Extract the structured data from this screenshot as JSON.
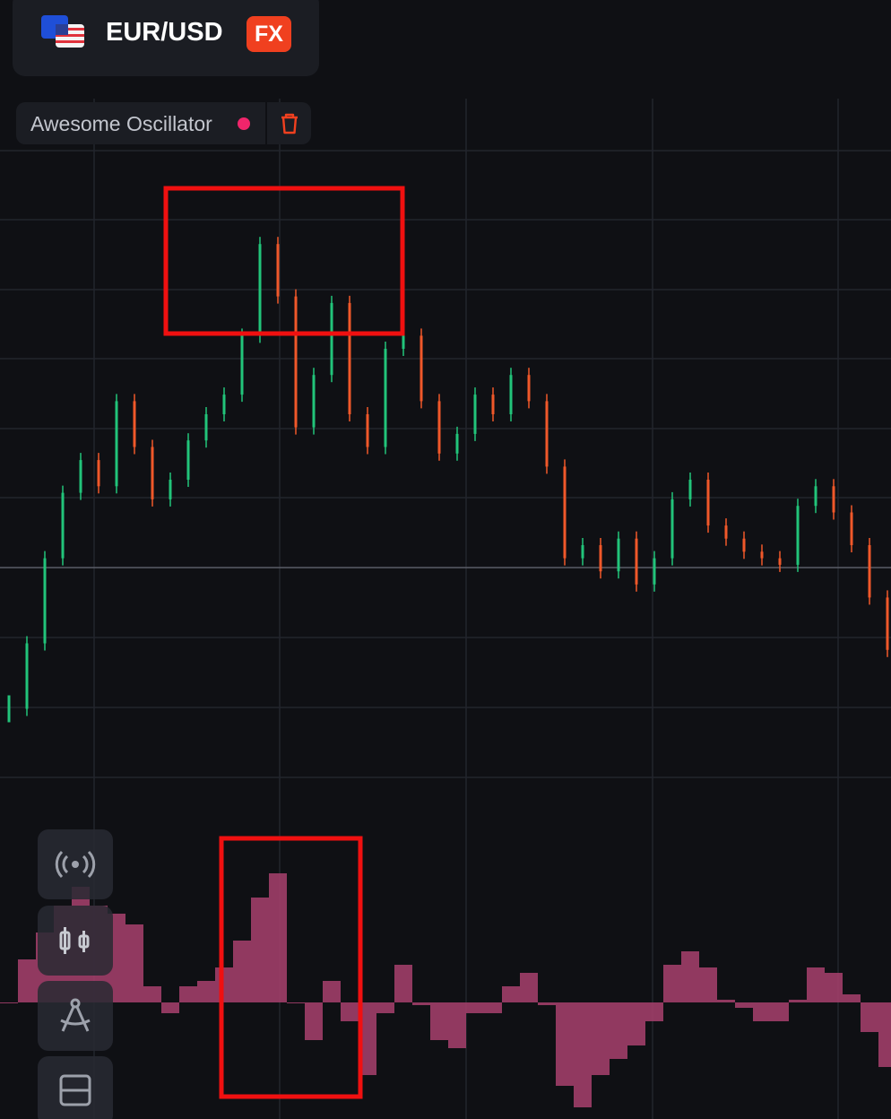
{
  "header": {
    "symbol": "EUR/USD",
    "market_badge": "FX"
  },
  "indicator": {
    "name": "Awesome Oscillator"
  },
  "chart_data": {
    "price": {
      "type": "candlestick",
      "ylim": [
        0,
        100
      ],
      "up_color": "#22c47a",
      "down_color": "#f0582a",
      "values": [
        15,
        25,
        38,
        48,
        53,
        49,
        62,
        55,
        47,
        50,
        56,
        60,
        63,
        72,
        86,
        78,
        58,
        66,
        77,
        60,
        55,
        70,
        72,
        62,
        54,
        57,
        63,
        60,
        66,
        62,
        52,
        38,
        40,
        36,
        41,
        34,
        38,
        47,
        50,
        43,
        41,
        39,
        38,
        37,
        46,
        49,
        45,
        40,
        32,
        24
      ]
    },
    "oscillator": {
      "type": "histogram",
      "ylim": [
        -44,
        56
      ],
      "color": "#a8416d",
      "values": [
        0,
        16,
        26,
        36,
        43,
        36,
        33,
        29,
        6,
        -4,
        6,
        8,
        13,
        23,
        39,
        48,
        0,
        -14,
        8,
        -7,
        -27,
        -4,
        14,
        -1,
        -14,
        -17,
        -4,
        -4,
        6,
        11,
        -1,
        -31,
        -39,
        -27,
        -21,
        -16,
        -7,
        14,
        19,
        13,
        1,
        -2,
        -7,
        -7,
        1,
        13,
        11,
        3,
        -11,
        -24
      ]
    }
  }
}
